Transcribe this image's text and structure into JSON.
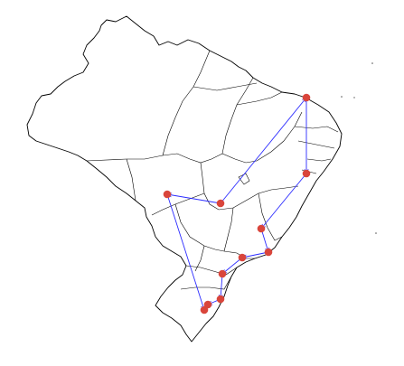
{
  "map": {
    "colors": {
      "city_marker": "#d9453b",
      "route_line": "#2b2bff",
      "outline": "#000000",
      "background": "#ffffff"
    },
    "legend": [],
    "labels": []
  }
}
